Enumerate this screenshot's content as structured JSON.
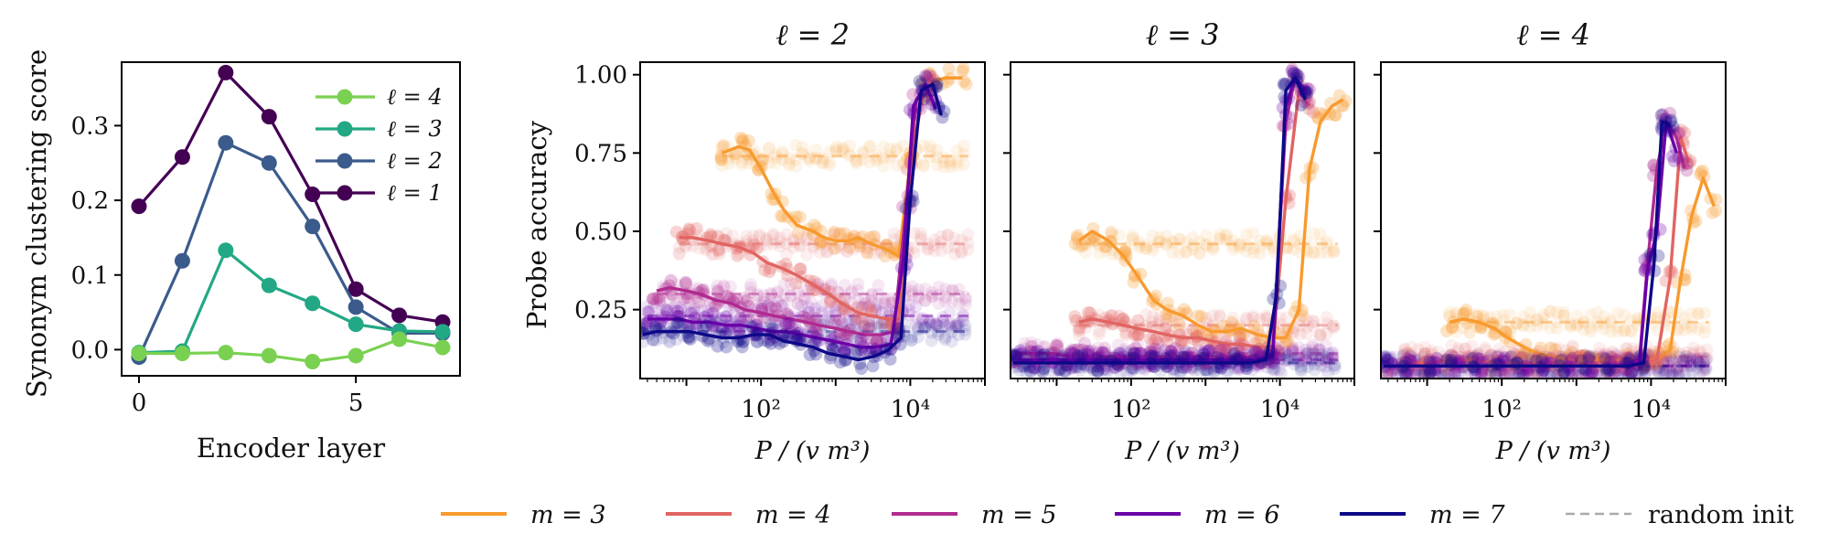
{
  "chart_data": [
    {
      "type": "line",
      "title": "",
      "xlabel": "Encoder layer",
      "ylabel": "Synonym clustering score",
      "x": [
        0,
        1,
        2,
        3,
        4,
        5,
        6,
        7
      ],
      "xticks": [
        0,
        5
      ],
      "xtick_labels": [
        "0",
        "5"
      ],
      "xlim": [
        -0.4,
        7.4
      ],
      "ylim": [
        -0.035,
        0.385
      ],
      "yticks": [
        0.0,
        0.1,
        0.2,
        0.3
      ],
      "ytick_labels": [
        "0.0",
        "0.1",
        "0.2",
        "0.3"
      ],
      "legend_position": "top-right",
      "series": [
        {
          "name": "ℓ = 4",
          "color": "#7ad151",
          "values": [
            -0.005,
            -0.005,
            -0.004,
            -0.008,
            -0.016,
            -0.008,
            0.014,
            0.003
          ]
        },
        {
          "name": "ℓ = 3",
          "color": "#22a884",
          "values": [
            -0.004,
            -0.002,
            0.133,
            0.086,
            0.062,
            0.034,
            0.025,
            0.024
          ]
        },
        {
          "name": "ℓ = 2",
          "color": "#3b5b8c",
          "values": [
            -0.01,
            0.119,
            0.277,
            0.25,
            0.165,
            0.057,
            0.022,
            0.022
          ]
        },
        {
          "name": "ℓ = 1",
          "color": "#440154",
          "values": [
            0.192,
            0.258,
            0.371,
            0.312,
            0.208,
            0.081,
            0.046,
            0.037
          ]
        }
      ]
    },
    {
      "type": "scatter",
      "title": "ℓ = 2",
      "xlabel": "P / (v m³)",
      "ylabel": "Probe accuracy",
      "x_scale": "log",
      "xlim": [
        2.4,
        100000
      ],
      "ylim": [
        0.03,
        1.04
      ],
      "xtick_labels": [
        "10²",
        "10⁴"
      ],
      "ytick_labels": [
        "0.25",
        "0.50",
        "0.75",
        "1.00"
      ],
      "yticks": [
        0.25,
        0.5,
        0.75,
        1.0
      ],
      "series": [
        {
          "name": "m = 3",
          "color": "#f89a2d",
          "random_init": 0.74,
          "x": [
            30,
            50,
            70,
            100,
            150,
            200,
            300,
            500,
            700,
            1000,
            1500,
            2000,
            3000,
            5000,
            7000,
            10000,
            15000,
            20000,
            30000,
            50000
          ],
          "values": [
            0.75,
            0.77,
            0.76,
            0.7,
            0.62,
            0.57,
            0.52,
            0.5,
            0.48,
            0.47,
            0.47,
            0.48,
            0.46,
            0.44,
            0.42,
            0.72,
            0.95,
            0.98,
            0.99,
            0.99
          ]
        },
        {
          "name": "m = 4",
          "color": "#e16462",
          "random_init": 0.46,
          "x": [
            8,
            12,
            20,
            30,
            50,
            80,
            120,
            200,
            300,
            500,
            800,
            1200,
            2000,
            3000,
            5000,
            7000,
            10000,
            15000,
            20000
          ],
          "values": [
            0.48,
            0.48,
            0.47,
            0.46,
            0.45,
            0.43,
            0.4,
            0.38,
            0.36,
            0.33,
            0.3,
            0.27,
            0.24,
            0.23,
            0.22,
            0.22,
            0.7,
            0.95,
            0.98
          ]
        },
        {
          "name": "m = 5",
          "color": "#b12a90",
          "random_init": 0.3,
          "x": [
            4,
            6,
            10,
            15,
            25,
            40,
            60,
            100,
            150,
            250,
            400,
            600,
            1000,
            1500,
            2500,
            4000,
            6000,
            9000,
            12000,
            18000
          ],
          "values": [
            0.31,
            0.32,
            0.31,
            0.3,
            0.28,
            0.27,
            0.25,
            0.24,
            0.23,
            0.22,
            0.21,
            0.2,
            0.19,
            0.18,
            0.17,
            0.17,
            0.18,
            0.6,
            0.92,
            0.97
          ]
        },
        {
          "name": "m = 6",
          "color": "#6a00a8",
          "random_init": 0.23,
          "x": [
            3,
            5,
            8,
            12,
            20,
            35,
            55,
            90,
            140,
            220,
            350,
            550,
            900,
            1400,
            2200,
            3500,
            5500,
            8000,
            11000,
            16000,
            22000
          ],
          "values": [
            0.22,
            0.22,
            0.22,
            0.21,
            0.21,
            0.2,
            0.2,
            0.19,
            0.18,
            0.18,
            0.17,
            0.16,
            0.15,
            0.14,
            0.13,
            0.13,
            0.14,
            0.4,
            0.9,
            0.97,
            0.89
          ]
        },
        {
          "name": "m = 7",
          "color": "#0d0887",
          "random_init": 0.18,
          "x": [
            2.6,
            4,
            7,
            11,
            18,
            30,
            50,
            80,
            130,
            200,
            320,
            500,
            800,
            1300,
            2000,
            3200,
            5000,
            7500,
            10000,
            14000,
            20000,
            26000
          ],
          "values": [
            0.17,
            0.18,
            0.18,
            0.18,
            0.17,
            0.16,
            0.16,
            0.17,
            0.17,
            0.15,
            0.14,
            0.13,
            0.11,
            0.1,
            0.09,
            0.1,
            0.12,
            0.16,
            0.6,
            0.95,
            0.97,
            0.87
          ]
        }
      ]
    },
    {
      "type": "scatter",
      "title": "ℓ = 3",
      "xlabel": "P / (v m³)",
      "ylabel": "",
      "x_scale": "log",
      "xlim": [
        2.4,
        100000
      ],
      "ylim": [
        0.03,
        1.04
      ],
      "xtick_labels": [
        "10²",
        "10⁴"
      ],
      "yticks": [
        0.25,
        0.5,
        0.75,
        1.0
      ],
      "series": [
        {
          "name": "m = 3",
          "color": "#f89a2d",
          "random_init": 0.46,
          "x": [
            20,
            30,
            50,
            80,
            120,
            200,
            300,
            500,
            800,
            1200,
            2000,
            3000,
            5000,
            8000,
            12000,
            18000,
            25000,
            35000,
            50000,
            70000
          ],
          "values": [
            0.47,
            0.5,
            0.47,
            0.42,
            0.36,
            0.28,
            0.25,
            0.23,
            0.2,
            0.18,
            0.18,
            0.19,
            0.17,
            0.16,
            0.16,
            0.25,
            0.7,
            0.85,
            0.9,
            0.92
          ]
        },
        {
          "name": "m = 4",
          "color": "#e16462",
          "random_init": 0.2,
          "x": [
            20,
            30,
            50,
            80,
            120,
            200,
            300,
            500,
            800,
            1200,
            2000,
            3000,
            5000,
            8000,
            12000,
            18000,
            25000
          ],
          "values": [
            0.21,
            0.22,
            0.21,
            0.2,
            0.19,
            0.18,
            0.17,
            0.16,
            0.16,
            0.15,
            0.14,
            0.14,
            0.13,
            0.13,
            0.6,
            0.95,
            0.9
          ]
        },
        {
          "name": "m = 5",
          "color": "#b12a90",
          "random_init": 0.11,
          "x": [
            3,
            5,
            9,
            15,
            25,
            40,
            70,
            120,
            200,
            350,
            600,
            1000,
            1800,
            3000,
            5000,
            8000,
            12000,
            16000,
            22000
          ],
          "values": [
            0.11,
            0.11,
            0.11,
            0.1,
            0.1,
            0.1,
            0.1,
            0.1,
            0.1,
            0.1,
            0.1,
            0.1,
            0.1,
            0.1,
            0.1,
            0.11,
            0.85,
            0.99,
            0.93
          ]
        },
        {
          "name": "m = 6",
          "color": "#6a00a8",
          "random_init": 0.09,
          "x": [
            3,
            5,
            9,
            15,
            25,
            40,
            70,
            120,
            200,
            350,
            600,
            1000,
            1800,
            3000,
            5000,
            8000,
            12000,
            16000,
            22000
          ],
          "values": [
            0.09,
            0.09,
            0.09,
            0.09,
            0.09,
            0.09,
            0.09,
            0.09,
            0.09,
            0.09,
            0.09,
            0.09,
            0.09,
            0.09,
            0.09,
            0.1,
            0.9,
            0.99,
            0.95
          ]
        },
        {
          "name": "m = 7",
          "color": "#0d0887",
          "random_init": 0.08,
          "x": [
            2.6,
            4,
            7,
            12,
            20,
            35,
            60,
            100,
            180,
            300,
            500,
            900,
            1500,
            2500,
            4000,
            6500,
            9000,
            12000,
            16000,
            22000
          ],
          "values": [
            0.08,
            0.08,
            0.08,
            0.08,
            0.08,
            0.08,
            0.08,
            0.08,
            0.08,
            0.08,
            0.08,
            0.08,
            0.08,
            0.08,
            0.08,
            0.09,
            0.3,
            0.95,
            0.99,
            0.92
          ]
        }
      ]
    },
    {
      "type": "scatter",
      "title": "ℓ = 4",
      "xlabel": "P / (v m³)",
      "ylabel": "",
      "x_scale": "log",
      "xlim": [
        2.4,
        100000
      ],
      "ylim": [
        0.03,
        1.04
      ],
      "xtick_labels": [
        "10²",
        "10⁴"
      ],
      "yticks": [
        0.25,
        0.5,
        0.75,
        1.0
      ],
      "series": [
        {
          "name": "m = 3",
          "color": "#f89a2d",
          "random_init": 0.21,
          "x": [
            20,
            30,
            50,
            80,
            120,
            200,
            300,
            500,
            800,
            1200,
            2000,
            3000,
            5000,
            8000,
            12000,
            18000,
            25000,
            35000,
            50000,
            70000
          ],
          "values": [
            0.21,
            0.22,
            0.21,
            0.19,
            0.16,
            0.13,
            0.11,
            0.1,
            0.09,
            0.09,
            0.09,
            0.09,
            0.09,
            0.09,
            0.09,
            0.12,
            0.35,
            0.55,
            0.67,
            0.58
          ]
        },
        {
          "name": "m = 4",
          "color": "#e16462",
          "random_init": 0.1,
          "x": [
            5,
            10,
            20,
            40,
            80,
            150,
            300,
            600,
            1200,
            2500,
            5000,
            8000,
            12000,
            18000,
            25000,
            32000
          ],
          "values": [
            0.08,
            0.08,
            0.09,
            0.09,
            0.08,
            0.08,
            0.08,
            0.08,
            0.08,
            0.08,
            0.08,
            0.08,
            0.09,
            0.35,
            0.8,
            0.72
          ]
        },
        {
          "name": "m = 5",
          "color": "#b12a90",
          "random_init": 0.07,
          "x": [
            3,
            6,
            12,
            25,
            50,
            100,
            200,
            400,
            800,
            1500,
            3000,
            5000,
            7000,
            9000,
            12000,
            16000,
            22000,
            28000
          ],
          "values": [
            0.07,
            0.07,
            0.07,
            0.07,
            0.07,
            0.07,
            0.07,
            0.07,
            0.07,
            0.07,
            0.07,
            0.08,
            0.09,
            0.4,
            0.7,
            0.85,
            0.8,
            0.7
          ]
        },
        {
          "name": "m = 6",
          "color": "#6a00a8",
          "random_init": 0.07,
          "x": [
            3,
            6,
            12,
            25,
            50,
            100,
            200,
            400,
            800,
            1500,
            3000,
            5000,
            7000,
            9000,
            12000,
            16000,
            22000
          ],
          "values": [
            0.07,
            0.07,
            0.07,
            0.07,
            0.07,
            0.07,
            0.07,
            0.07,
            0.07,
            0.07,
            0.07,
            0.07,
            0.08,
            0.38,
            0.5,
            0.85,
            0.75
          ]
        },
        {
          "name": "m = 7",
          "color": "#0d0887",
          "random_init": 0.07,
          "x": [
            2.6,
            5,
            10,
            20,
            40,
            80,
            160,
            320,
            640,
            1300,
            2600,
            5000,
            8000,
            11000,
            14000,
            18000
          ],
          "values": [
            0.07,
            0.07,
            0.07,
            0.07,
            0.07,
            0.07,
            0.07,
            0.07,
            0.07,
            0.07,
            0.07,
            0.07,
            0.08,
            0.4,
            0.85,
            0.84
          ]
        }
      ]
    }
  ],
  "legend_bottom": [
    {
      "label": "m = 3",
      "color": "#f89a2d",
      "style": "solid"
    },
    {
      "label": "m = 4",
      "color": "#e16462",
      "style": "solid"
    },
    {
      "label": "m = 5",
      "color": "#b12a90",
      "style": "solid"
    },
    {
      "label": "m = 6",
      "color": "#6a00a8",
      "style": "solid"
    },
    {
      "label": "m = 7",
      "color": "#0d0887",
      "style": "solid"
    },
    {
      "label": "random init",
      "color": "#aaaaaa",
      "style": "dashed"
    }
  ]
}
